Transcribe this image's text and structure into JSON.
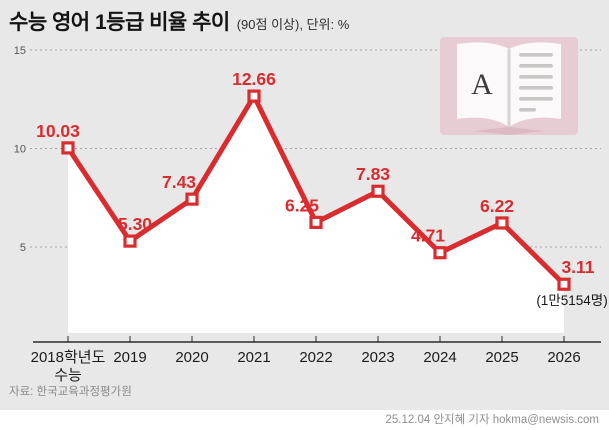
{
  "header": {
    "title": "수능 영어 1등급 비율 추이",
    "subtitle": "(90점 이상), 단위: %"
  },
  "chart_data": {
    "type": "line",
    "title": "수능 영어 1등급 비율 추이",
    "unit": "%",
    "categories": [
      "2018학년도\n수능",
      "2019",
      "2020",
      "2021",
      "2022",
      "2023",
      "2024",
      "2025",
      "2026"
    ],
    "values": [
      10.03,
      5.3,
      7.43,
      12.66,
      6.25,
      7.83,
      4.71,
      6.22,
      3.11
    ],
    "value_labels": [
      "10.03",
      "5.30",
      "7.43",
      "12.66",
      "6.25",
      "7.83",
      "4.71",
      "6.22",
      "3.11"
    ],
    "last_point_annotation": "(1만5154명)",
    "yticks": [
      15,
      10,
      5
    ],
    "ylim": [
      0,
      15
    ],
    "grid": "dotted-horizontal",
    "legend": "none",
    "marker": "open-square",
    "line_color": "#d92c2f",
    "label_color": "#d92c2f",
    "area_fill": "#ffffff"
  },
  "book_icon": {
    "letter": "A"
  },
  "source": "자료: 한국교육과정평가원",
  "byline": "25.12.04 안지혜 기자 hokma@newsis.com",
  "colors": {
    "background": "#e9e8e8",
    "accent_red": "#d92c2f",
    "icon_pink": "#e7ccd3",
    "icon_pink_dark": "#dcb9c3",
    "page_white": "#fbf9f9",
    "footer_bg": "#ffffff"
  }
}
